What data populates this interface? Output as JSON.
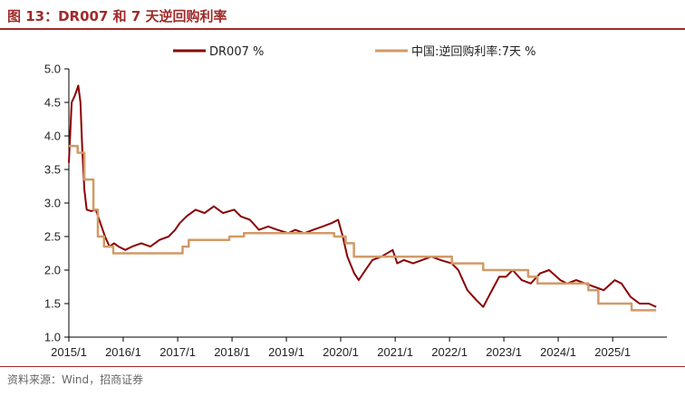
{
  "figure": {
    "title": "图 13：DR007 和 7 天逆回购利率",
    "source": "资料来源：Wind，招商证券"
  },
  "colors": {
    "title": "#a12a2a",
    "dr007": "#8b0000",
    "reverse_repo": "#d19a66",
    "axis": "#000000"
  },
  "chart_data": {
    "type": "line",
    "title": "",
    "xlabel": "",
    "ylabel": "",
    "xlim": [
      "2015-01-01",
      "2025-12-31"
    ],
    "ylim": [
      1.0,
      5.0
    ],
    "x_ticks": [
      "2015/1",
      "2016/1",
      "2017/1",
      "2018/1",
      "2019/1",
      "2020/1",
      "2021/1",
      "2022/1",
      "2023/1",
      "2024/1",
      "2025/1"
    ],
    "y_ticks": [
      "1.0",
      "1.5",
      "2.0",
      "2.5",
      "3.0",
      "3.5",
      "4.0",
      "4.5",
      "5.0"
    ],
    "grid": false,
    "legend_position": "top",
    "series": [
      {
        "name": "DR007 %",
        "style": "line",
        "points": [
          [
            "2015-01-01",
            3.6
          ],
          [
            "2015-01-20",
            4.5
          ],
          [
            "2015-02-10",
            4.6
          ],
          [
            "2015-03-05",
            4.75
          ],
          [
            "2015-03-20",
            4.5
          ],
          [
            "2015-04-01",
            3.8
          ],
          [
            "2015-04-15",
            3.2
          ],
          [
            "2015-05-01",
            2.9
          ],
          [
            "2015-06-01",
            2.88
          ],
          [
            "2015-07-01",
            2.9
          ],
          [
            "2015-08-01",
            2.7
          ],
          [
            "2015-09-01",
            2.5
          ],
          [
            "2015-10-01",
            2.35
          ],
          [
            "2015-11-01",
            2.4
          ],
          [
            "2015-12-01",
            2.35
          ],
          [
            "2016-01-15",
            2.3
          ],
          [
            "2016-03-01",
            2.35
          ],
          [
            "2016-05-01",
            2.4
          ],
          [
            "2016-07-01",
            2.35
          ],
          [
            "2016-09-01",
            2.45
          ],
          [
            "2016-11-01",
            2.5
          ],
          [
            "2016-12-15",
            2.6
          ],
          [
            "2017-01-15",
            2.7
          ],
          [
            "2017-03-01",
            2.8
          ],
          [
            "2017-05-01",
            2.9
          ],
          [
            "2017-07-01",
            2.85
          ],
          [
            "2017-09-01",
            2.95
          ],
          [
            "2017-11-01",
            2.85
          ],
          [
            "2018-01-15",
            2.9
          ],
          [
            "2018-03-01",
            2.8
          ],
          [
            "2018-05-01",
            2.75
          ],
          [
            "2018-07-01",
            2.6
          ],
          [
            "2018-09-01",
            2.65
          ],
          [
            "2018-11-01",
            2.6
          ],
          [
            "2019-01-15",
            2.55
          ],
          [
            "2019-03-01",
            2.6
          ],
          [
            "2019-05-01",
            2.55
          ],
          [
            "2019-07-01",
            2.6
          ],
          [
            "2019-09-01",
            2.65
          ],
          [
            "2019-11-01",
            2.7
          ],
          [
            "2019-12-15",
            2.75
          ],
          [
            "2020-01-15",
            2.5
          ],
          [
            "2020-02-15",
            2.2
          ],
          [
            "2020-04-01",
            1.95
          ],
          [
            "2020-05-01",
            1.85
          ],
          [
            "2020-06-15",
            2.0
          ],
          [
            "2020-08-01",
            2.15
          ],
          [
            "2020-10-01",
            2.2
          ],
          [
            "2020-12-15",
            2.3
          ],
          [
            "2021-01-15",
            2.1
          ],
          [
            "2021-03-01",
            2.15
          ],
          [
            "2021-05-01",
            2.1
          ],
          [
            "2021-07-01",
            2.15
          ],
          [
            "2021-09-01",
            2.2
          ],
          [
            "2021-11-01",
            2.15
          ],
          [
            "2022-01-15",
            2.1
          ],
          [
            "2022-03-01",
            2.0
          ],
          [
            "2022-05-01",
            1.7
          ],
          [
            "2022-07-01",
            1.55
          ],
          [
            "2022-08-15",
            1.45
          ],
          [
            "2022-10-01",
            1.65
          ],
          [
            "2022-12-01",
            1.9
          ],
          [
            "2023-01-15",
            1.9
          ],
          [
            "2023-03-01",
            2.0
          ],
          [
            "2023-05-01",
            1.85
          ],
          [
            "2023-07-01",
            1.8
          ],
          [
            "2023-09-01",
            1.95
          ],
          [
            "2023-11-01",
            2.0
          ],
          [
            "2024-01-15",
            1.85
          ],
          [
            "2024-03-01",
            1.8
          ],
          [
            "2024-05-01",
            1.85
          ],
          [
            "2024-07-01",
            1.8
          ],
          [
            "2024-09-01",
            1.75
          ],
          [
            "2024-11-01",
            1.7
          ],
          [
            "2025-01-15",
            1.85
          ],
          [
            "2025-03-01",
            1.8
          ],
          [
            "2025-05-01",
            1.6
          ],
          [
            "2025-07-01",
            1.5
          ],
          [
            "2025-09-01",
            1.5
          ],
          [
            "2025-10-20",
            1.45
          ]
        ]
      },
      {
        "name": "中国:逆回购利率:7天 %",
        "style": "step",
        "points": [
          [
            "2015-01-01",
            3.85
          ],
          [
            "2015-03-01",
            3.75
          ],
          [
            "2015-04-15",
            3.35
          ],
          [
            "2015-06-15",
            2.9
          ],
          [
            "2015-07-15",
            2.5
          ],
          [
            "2015-08-25",
            2.35
          ],
          [
            "2015-10-26",
            2.25
          ],
          [
            "2017-02-03",
            2.35
          ],
          [
            "2017-03-16",
            2.45
          ],
          [
            "2017-12-14",
            2.5
          ],
          [
            "2018-03-22",
            2.55
          ],
          [
            "2019-11-18",
            2.5
          ],
          [
            "2020-02-03",
            2.4
          ],
          [
            "2020-03-30",
            2.2
          ],
          [
            "2022-01-17",
            2.1
          ],
          [
            "2022-08-15",
            2.0
          ],
          [
            "2023-06-13",
            1.9
          ],
          [
            "2023-08-15",
            1.8
          ],
          [
            "2024-07-22",
            1.7
          ],
          [
            "2024-09-27",
            1.5
          ],
          [
            "2025-05-08",
            1.4
          ],
          [
            "2025-10-20",
            1.4
          ]
        ]
      }
    ]
  }
}
